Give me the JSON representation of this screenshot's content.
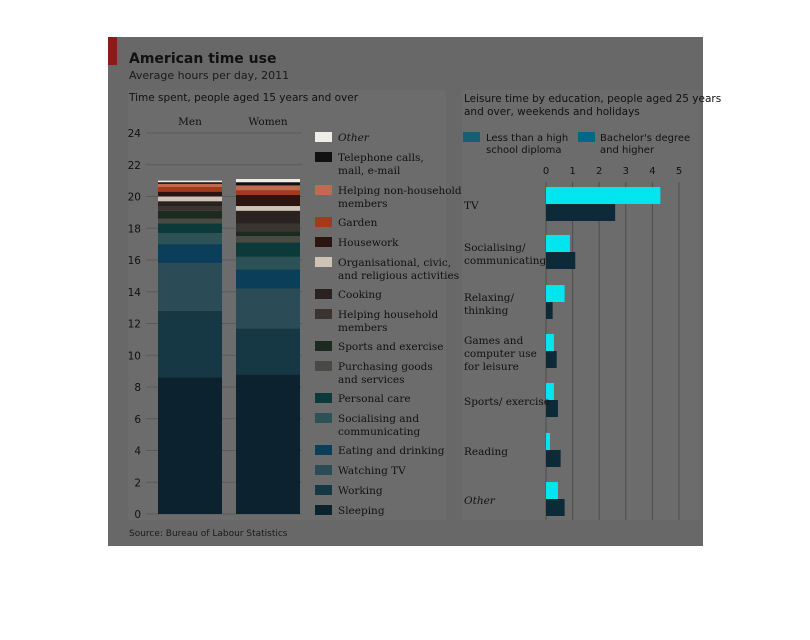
{
  "header": {
    "title": "American time use",
    "subtitle": "Average hours per day, 2011",
    "source": "Source: Bureau of Labour Statistics"
  },
  "colors": {
    "panel": "#686868",
    "inner_panel": "#6c6c6c",
    "accent_red": "#8b1a1a",
    "highlight": "#00e5ee",
    "less_than_hs": "#1a5c72",
    "bachelors": "#006a86",
    "grid": "#4e4e4e"
  },
  "chart_data": [
    {
      "type": "bar",
      "stacked": true,
      "title": "Time spent, people aged 15 years and over",
      "categories": [
        "Men",
        "Women"
      ],
      "ylim": [
        0,
        24
      ],
      "yticks": [
        0,
        2,
        4,
        6,
        8,
        10,
        12,
        14,
        16,
        18,
        20,
        22,
        24
      ],
      "legend_position": "right",
      "series": [
        {
          "name": "Sleeping",
          "color": "#0c222e",
          "values": [
            8.6,
            8.8
          ]
        },
        {
          "name": "Working",
          "color": "#163845",
          "values": [
            4.2,
            2.9
          ]
        },
        {
          "name": "Watching TV",
          "color": "#2b4b57",
          "values": [
            3.0,
            2.5
          ]
        },
        {
          "name": "Eating and drinking",
          "color": "#0b3e58",
          "values": [
            1.2,
            1.2
          ]
        },
        {
          "name": "Socialising and communicating",
          "color": "#2d5255",
          "values": [
            0.7,
            0.8
          ]
        },
        {
          "name": "Personal care",
          "color": "#0c3a38",
          "values": [
            0.6,
            0.9
          ]
        },
        {
          "name": "Purchasing goods and services",
          "color": "#4a4a45",
          "values": [
            0.3,
            0.4
          ]
        },
        {
          "name": "Sports and exercise",
          "color": "#1c2a20",
          "values": [
            0.5,
            0.3
          ]
        },
        {
          "name": "Helping household members",
          "color": "#3a3430",
          "values": [
            0.3,
            0.5
          ]
        },
        {
          "name": "Cooking",
          "color": "#2a2220",
          "values": [
            0.3,
            0.8
          ]
        },
        {
          "name": "Organisational, civic, and religious activities",
          "color": "#cfc2b6",
          "values": [
            0.3,
            0.3
          ]
        },
        {
          "name": "Housework",
          "color": "#2a1510",
          "values": [
            0.3,
            0.7
          ]
        },
        {
          "name": "Garden",
          "color": "#a33a1a",
          "values": [
            0.3,
            0.3
          ]
        },
        {
          "name": "Helping non-household members",
          "color": "#c06a50",
          "values": [
            0.2,
            0.3
          ]
        },
        {
          "name": "Telephone calls, mail, e-mail",
          "color": "#111111",
          "values": [
            0.1,
            0.2
          ]
        },
        {
          "name": "Other",
          "color": "#f0ece8",
          "values": [
            0.1,
            0.2
          ]
        }
      ]
    },
    {
      "type": "bar",
      "orientation": "horizontal",
      "title": "Leisure time by education, people aged 25 years and over, weekends and holidays",
      "categories": [
        "TV",
        "Socialising/ communicating",
        "Relaxing/ thinking",
        "Games and computer use for leisure",
        "Sports/ exercise",
        "Reading",
        "Other"
      ],
      "xlim": [
        0,
        5
      ],
      "xticks": [
        0,
        1,
        2,
        3,
        4,
        5
      ],
      "legend_position": "top",
      "series": [
        {
          "name": "Less than a high school diploma",
          "color": "#00e5ee",
          "values": [
            4.3,
            0.9,
            0.7,
            0.3,
            0.3,
            0.15,
            0.45
          ]
        },
        {
          "name": "Bachelor's degree and higher",
          "color": "#0c2a38",
          "values": [
            2.6,
            1.1,
            0.25,
            0.4,
            0.45,
            0.55,
            0.7
          ]
        }
      ]
    }
  ]
}
